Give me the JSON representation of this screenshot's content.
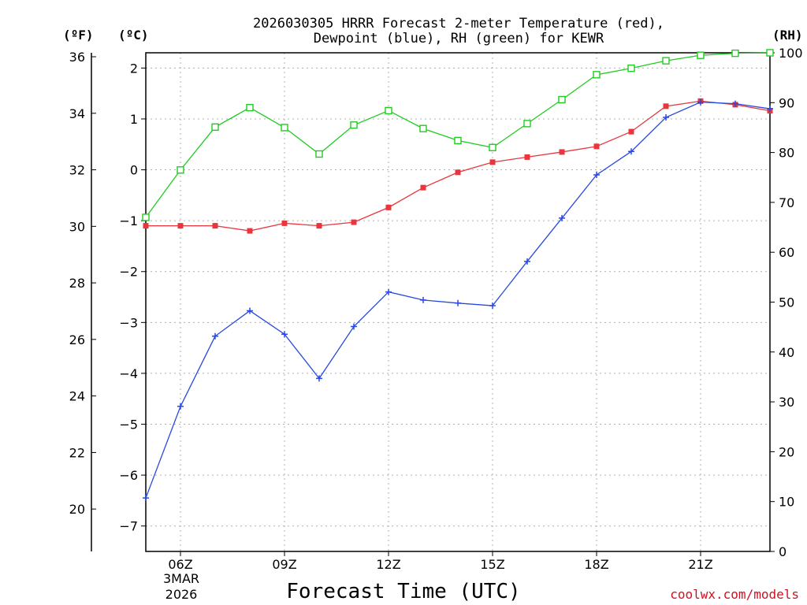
{
  "chart_data": {
    "type": "line",
    "title_line1": "2026030305 HRRR Forecast 2-meter Temperature (red),",
    "title_line2": "Dewpoint (blue), RH (green) for KEWR",
    "xlabel": "Forecast Time (UTC)",
    "credit": "coolwx.com/models",
    "unit_f": "(ºF)",
    "unit_c": "(ºC)",
    "unit_rh": "(RH)",
    "date_line1": "3MAR",
    "date_line2": "2026",
    "x_hours": [
      5,
      6,
      7,
      8,
      9,
      10,
      11,
      12,
      13,
      14,
      15,
      16,
      17,
      18,
      19,
      20,
      21,
      22,
      23
    ],
    "x_range": [
      5,
      23
    ],
    "x_ticks": [
      6,
      9,
      12,
      15,
      18,
      21
    ],
    "x_tick_labels": [
      "06Z",
      "09Z",
      "12Z",
      "15Z",
      "18Z",
      "21Z"
    ],
    "ylim_c": [
      -7.5,
      2.3
    ],
    "c_ticks": [
      2,
      1,
      0,
      -1,
      -2,
      -3,
      -4,
      -5,
      -6,
      -7
    ],
    "c_tick_labels": [
      "2",
      "1",
      "0",
      "−1",
      "−2",
      "−3",
      "−4",
      "−5",
      "−6",
      "−7"
    ],
    "f_ticks": [
      36,
      34,
      32,
      30,
      28,
      26,
      24,
      22,
      20
    ],
    "f_tick_labels": [
      "36",
      "34",
      "32",
      "30",
      "28",
      "26",
      "24",
      "22",
      "20"
    ],
    "ylim_rh": [
      0,
      100
    ],
    "rh_ticks": [
      100,
      90,
      80,
      70,
      60,
      50,
      40,
      30,
      20,
      10,
      0
    ],
    "rh_tick_labels": [
      "100",
      "90",
      "80",
      "70",
      "60",
      "50",
      "40",
      "30",
      "20",
      "10",
      "0"
    ],
    "series": [
      {
        "name": "Temperature",
        "axis": "c",
        "color": "#e8363c",
        "marker": "filled-square",
        "values": [
          -1.1,
          -1.1,
          -1.1,
          -1.2,
          -1.05,
          -1.1,
          -1.03,
          -0.74,
          -0.35,
          -0.05,
          0.15,
          0.25,
          0.35,
          0.46,
          0.75,
          1.25,
          1.35,
          1.28,
          1.16
        ]
      },
      {
        "name": "Dewpoint",
        "axis": "c",
        "color": "#2848e0",
        "marker": "plus",
        "values": [
          -6.45,
          -4.65,
          -3.27,
          -2.77,
          -3.23,
          -4.1,
          -3.08,
          -2.4,
          -2.56,
          -2.62,
          -2.67,
          -1.8,
          -0.95,
          -0.1,
          0.36,
          1.03,
          1.33,
          1.3,
          1.2
        ]
      },
      {
        "name": "RH",
        "axis": "rh",
        "color": "#20cc20",
        "marker": "open-square",
        "values": [
          67,
          76.5,
          85.1,
          89,
          85,
          79.7,
          85.5,
          88.4,
          84.8,
          82.4,
          81,
          85.8,
          90.6,
          95.6,
          96.9,
          98.4,
          99.5,
          99.9,
          100
        ]
      }
    ]
  }
}
